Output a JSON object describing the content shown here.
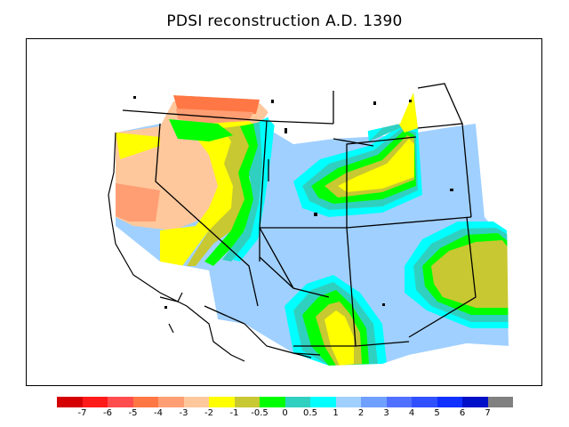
{
  "title": "PDSI reconstruction A.D. 1390",
  "colorbar": {
    "colors": [
      "#d50000",
      "#ff1a1a",
      "#ff4d4d",
      "#ff7744",
      "#ff9e73",
      "#ffc89c",
      "#ffff00",
      "#c8c832",
      "#00ff00",
      "#30d0c0",
      "#00ffff",
      "#a0d0ff",
      "#70a0ff",
      "#5070ff",
      "#3050ff",
      "#1030ff",
      "#0010c8",
      "#808080"
    ],
    "tick_labels": [
      "-7",
      "-6",
      "-5",
      "-4",
      "-3",
      "-2",
      "-1",
      "-0.5",
      "0",
      "0.5",
      "1",
      "2",
      "3",
      "4",
      "5",
      "6",
      "7"
    ]
  }
}
